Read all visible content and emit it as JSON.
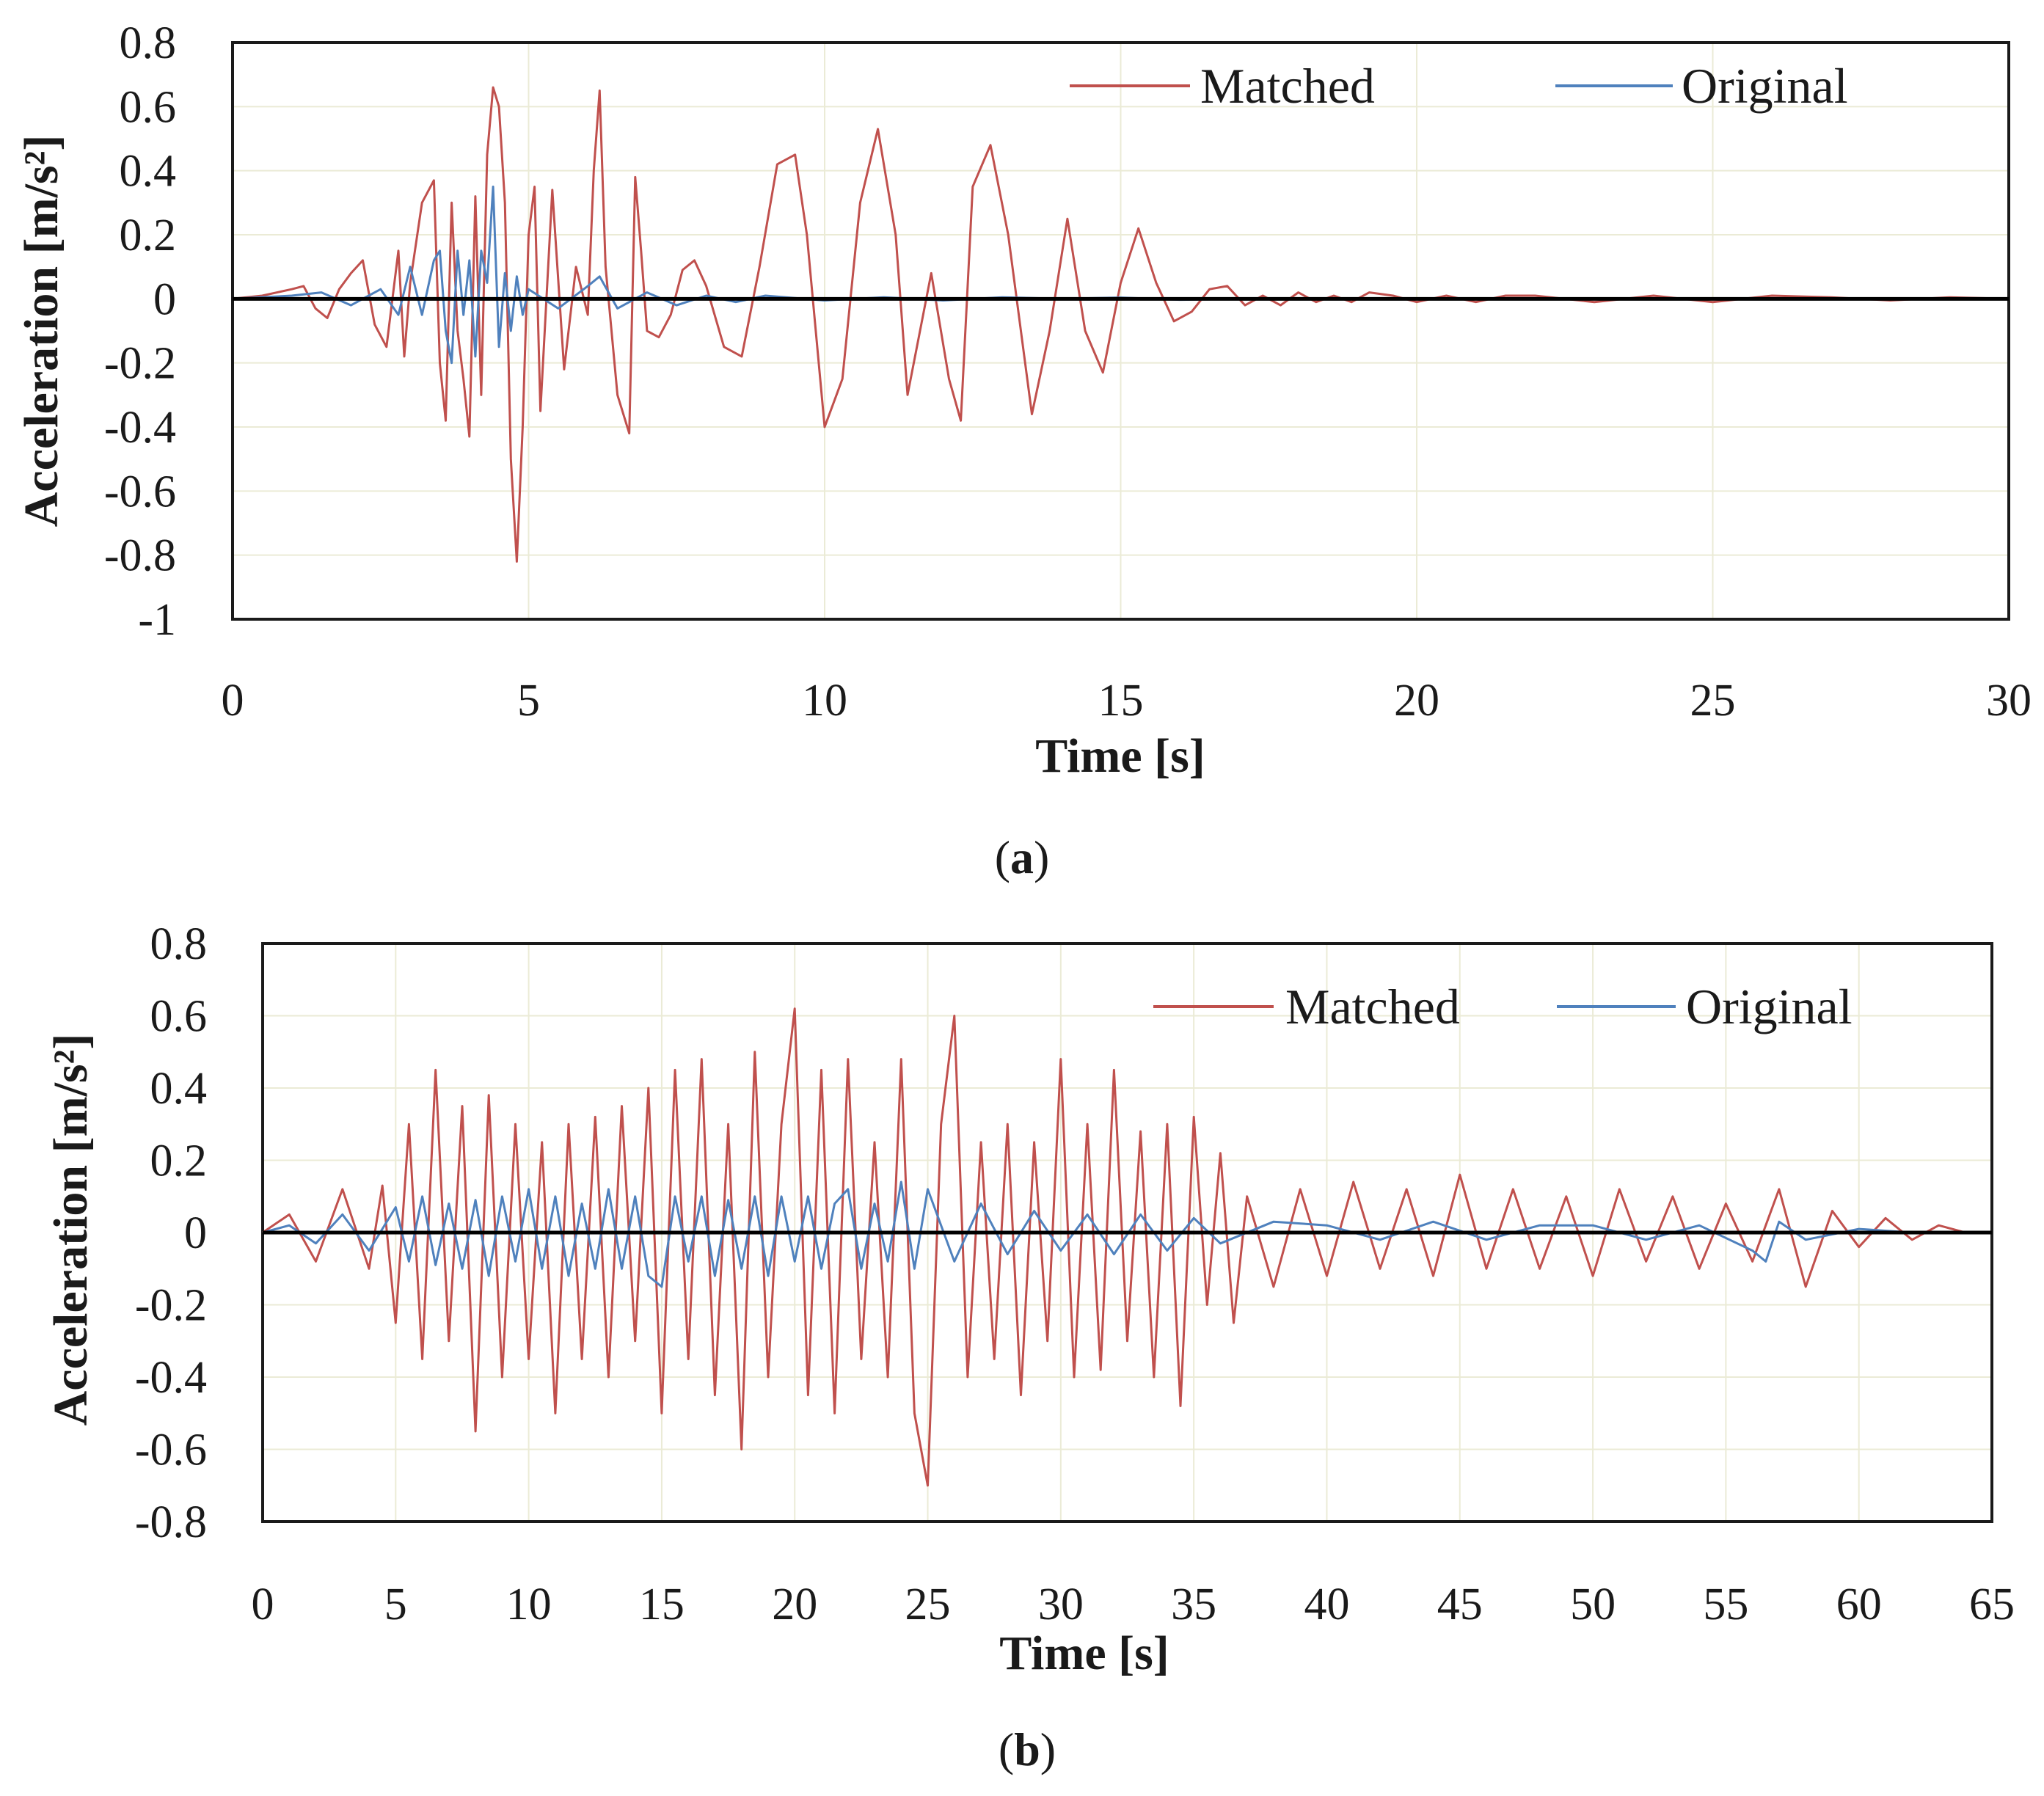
{
  "figure": {
    "panels": [
      {
        "caption_open": "(",
        "caption_letter": "a",
        "caption_close": ")"
      },
      {
        "caption_open": "(",
        "caption_letter": "b",
        "caption_close": ")"
      }
    ]
  },
  "colors": {
    "matched": "#c0504d",
    "original": "#4f81bd",
    "zero_line": "#000000",
    "grid": "#ebebd6",
    "frame": "#1a1a1a"
  },
  "chart_data": [
    {
      "type": "line",
      "panel": "a",
      "xlabel": "Time [s]",
      "ylabel": "Acceleration [m/s²]",
      "xlim": [
        0,
        30
      ],
      "ylim": [
        -1,
        0.8
      ],
      "xticks": [
        0,
        5,
        10,
        15,
        20,
        25,
        30
      ],
      "yticks": [
        -1,
        -0.8,
        -0.6,
        -0.4,
        -0.2,
        0,
        0.2,
        0.4,
        0.6,
        0.8
      ],
      "xtick_labels": [
        "0",
        "5",
        "10",
        "15",
        "20",
        "25",
        "30"
      ],
      "ytick_labels": [
        "-1",
        "-0.8",
        "-0.6",
        "-0.4",
        "-0.2",
        "0",
        "0.2",
        "0.4",
        "0.6",
        "0.8"
      ],
      "legend": [
        "Matched",
        "Original"
      ],
      "legend_position": "top-right",
      "series": [
        {
          "name": "Matched",
          "color": "#c0504d",
          "x": [
            0,
            0.5,
            1.0,
            1.2,
            1.4,
            1.6,
            1.8,
            2.0,
            2.2,
            2.4,
            2.6,
            2.8,
            2.9,
            3.0,
            3.2,
            3.4,
            3.5,
            3.6,
            3.7,
            3.8,
            3.9,
            4.0,
            4.1,
            4.2,
            4.3,
            4.4,
            4.5,
            4.6,
            4.7,
            4.8,
            4.9,
            5.0,
            5.1,
            5.2,
            5.4,
            5.6,
            5.8,
            6.0,
            6.1,
            6.2,
            6.3,
            6.5,
            6.7,
            6.8,
            6.9,
            7.0,
            7.2,
            7.4,
            7.6,
            7.8,
            8.0,
            8.3,
            8.6,
            8.9,
            9.2,
            9.5,
            9.7,
            10.0,
            10.3,
            10.6,
            10.9,
            11.2,
            11.4,
            11.8,
            12.1,
            12.3,
            12.5,
            12.8,
            13.1,
            13.5,
            13.8,
            14.1,
            14.4,
            14.7,
            15.0,
            15.3,
            15.6,
            15.9,
            16.2,
            16.5,
            16.8,
            17.1,
            17.4,
            17.7,
            18.0,
            18.3,
            18.6,
            18.9,
            19.2,
            19.6,
            20.0,
            20.5,
            21.0,
            21.5,
            22.0,
            23.0,
            24.0,
            25.0,
            26.0,
            27.0,
            28.0,
            29.0,
            30.0
          ],
          "y": [
            0,
            0.01,
            0.03,
            0.04,
            -0.03,
            -0.06,
            0.03,
            0.08,
            0.12,
            -0.08,
            -0.15,
            0.15,
            -0.18,
            0.05,
            0.3,
            0.37,
            -0.2,
            -0.38,
            0.3,
            -0.1,
            -0.25,
            -0.43,
            0.32,
            -0.3,
            0.45,
            0.66,
            0.6,
            0.3,
            -0.5,
            -0.82,
            -0.4,
            0.2,
            0.35,
            -0.35,
            0.34,
            -0.22,
            0.1,
            -0.05,
            0.4,
            0.65,
            0.1,
            -0.3,
            -0.42,
            0.38,
            0.15,
            -0.1,
            -0.12,
            -0.05,
            0.09,
            0.12,
            0.04,
            -0.15,
            -0.18,
            0.1,
            0.42,
            0.45,
            0.2,
            -0.4,
            -0.25,
            0.3,
            0.53,
            0.2,
            -0.3,
            0.08,
            -0.25,
            -0.38,
            0.35,
            0.48,
            0.2,
            -0.36,
            -0.1,
            0.25,
            -0.1,
            -0.23,
            0.05,
            0.22,
            0.05,
            -0.07,
            -0.04,
            0.03,
            0.04,
            -0.02,
            0.01,
            -0.02,
            0.02,
            -0.01,
            0.01,
            -0.01,
            0.02,
            0.01,
            -0.01,
            0.01,
            -0.01,
            0.01,
            0.01,
            -0.01,
            0.01,
            -0.01,
            0.01,
            0.005,
            -0.005,
            0.005,
            0
          ]
        },
        {
          "name": "Original",
          "color": "#4f81bd",
          "x": [
            0,
            1.0,
            1.5,
            2.0,
            2.5,
            2.8,
            3.0,
            3.2,
            3.4,
            3.5,
            3.6,
            3.7,
            3.8,
            3.9,
            4.0,
            4.1,
            4.2,
            4.3,
            4.4,
            4.5,
            4.6,
            4.7,
            4.8,
            4.9,
            5.0,
            5.5,
            6.0,
            6.2,
            6.5,
            7.0,
            7.5,
            8.0,
            8.5,
            9.0,
            10.0,
            11.0,
            12.0,
            13.0,
            14.0,
            15.0,
            16.0,
            18.0,
            20.0,
            25.0,
            30.0
          ],
          "y": [
            0,
            0.01,
            0.02,
            -0.02,
            0.03,
            -0.05,
            0.1,
            -0.05,
            0.12,
            0.15,
            -0.1,
            -0.2,
            0.15,
            -0.05,
            0.12,
            -0.18,
            0.15,
            0.05,
            0.35,
            -0.15,
            0.08,
            -0.1,
            0.07,
            -0.05,
            0.03,
            -0.03,
            0.04,
            0.07,
            -0.03,
            0.02,
            -0.02,
            0.01,
            -0.01,
            0.01,
            -0.005,
            0.005,
            -0.005,
            0.005,
            0,
            0.004,
            -0.003,
            0.002,
            0,
            0,
            0
          ]
        }
      ]
    },
    {
      "type": "line",
      "panel": "b",
      "xlabel": "Time [s]",
      "ylabel": "Acceleration [m/s²]",
      "xlim": [
        0,
        65
      ],
      "ylim": [
        -0.8,
        0.8
      ],
      "xticks": [
        0,
        5,
        10,
        15,
        20,
        25,
        30,
        35,
        40,
        45,
        50,
        55,
        60,
        65
      ],
      "yticks": [
        -0.8,
        -0.6,
        -0.4,
        -0.2,
        0,
        0.2,
        0.4,
        0.6,
        0.8
      ],
      "xtick_labels": [
        "0",
        "5",
        "10",
        "15",
        "20",
        "25",
        "30",
        "35",
        "40",
        "45",
        "50",
        "55",
        "60",
        "65"
      ],
      "ytick_labels": [
        "-0.8",
        "-0.6",
        "-0.4",
        "-0.2",
        "0",
        "0.2",
        "0.4",
        "0.6",
        "0.8"
      ],
      "legend": [
        "Matched",
        "Original"
      ],
      "legend_position": "top-right",
      "series": [
        {
          "name": "Matched",
          "color": "#c0504d",
          "x": [
            0,
            1,
            2,
            3,
            4,
            4.5,
            5,
            5.5,
            6,
            6.5,
            7,
            7.5,
            8,
            8.5,
            9,
            9.5,
            10,
            10.5,
            11,
            11.5,
            12,
            12.5,
            13,
            13.5,
            14,
            14.5,
            15,
            15.5,
            16,
            16.5,
            17,
            17.5,
            18,
            18.5,
            19,
            19.5,
            20,
            20.5,
            21,
            21.5,
            22,
            22.5,
            23,
            23.5,
            24,
            24.5,
            25,
            25.5,
            26,
            26.5,
            27,
            27.5,
            28,
            28.5,
            29,
            29.5,
            30,
            30.5,
            31,
            31.5,
            32,
            32.5,
            33,
            33.5,
            34,
            34.5,
            35,
            35.5,
            36,
            36.5,
            37,
            38,
            39,
            40,
            41,
            42,
            43,
            44,
            45,
            46,
            47,
            48,
            49,
            50,
            51,
            52,
            53,
            54,
            55,
            56,
            57,
            58,
            59,
            60,
            61,
            62,
            63,
            64,
            65
          ],
          "y": [
            0,
            0.05,
            -0.08,
            0.12,
            -0.1,
            0.13,
            -0.25,
            0.3,
            -0.35,
            0.45,
            -0.3,
            0.35,
            -0.55,
            0.38,
            -0.4,
            0.3,
            -0.35,
            0.25,
            -0.5,
            0.3,
            -0.35,
            0.32,
            -0.4,
            0.35,
            -0.3,
            0.4,
            -0.5,
            0.45,
            -0.35,
            0.48,
            -0.45,
            0.3,
            -0.6,
            0.5,
            -0.4,
            0.3,
            0.62,
            -0.45,
            0.45,
            -0.5,
            0.48,
            -0.35,
            0.25,
            -0.4,
            0.48,
            -0.5,
            -0.7,
            0.3,
            0.6,
            -0.4,
            0.25,
            -0.35,
            0.3,
            -0.45,
            0.25,
            -0.3,
            0.48,
            -0.4,
            0.3,
            -0.38,
            0.45,
            -0.3,
            0.28,
            -0.4,
            0.3,
            -0.48,
            0.32,
            -0.2,
            0.22,
            -0.25,
            0.1,
            -0.15,
            0.12,
            -0.12,
            0.14,
            -0.1,
            0.12,
            -0.12,
            0.16,
            -0.1,
            0.12,
            -0.1,
            0.1,
            -0.12,
            0.12,
            -0.08,
            0.1,
            -0.1,
            0.08,
            -0.08,
            0.12,
            -0.15,
            0.06,
            -0.04,
            0.04,
            -0.02,
            0.02,
            0,
            0
          ]
        },
        {
          "name": "Original",
          "color": "#4f81bd",
          "x": [
            0,
            1,
            2,
            3,
            4,
            5,
            5.5,
            6,
            6.5,
            7,
            7.5,
            8,
            8.5,
            9,
            9.5,
            10,
            10.5,
            11,
            11.5,
            12,
            12.5,
            13,
            13.5,
            14,
            14.5,
            15,
            15.5,
            16,
            16.5,
            17,
            17.5,
            18,
            18.5,
            19,
            19.5,
            20,
            20.5,
            21,
            21.5,
            22,
            22.5,
            23,
            23.5,
            24,
            24.5,
            25,
            26,
            27,
            28,
            29,
            30,
            31,
            32,
            33,
            34,
            35,
            36,
            38,
            40,
            42,
            44,
            46,
            48,
            50,
            52,
            54,
            56,
            56.5,
            57,
            58,
            60,
            62,
            65
          ],
          "y": [
            0,
            0.02,
            -0.03,
            0.05,
            -0.05,
            0.07,
            -0.08,
            0.1,
            -0.09,
            0.08,
            -0.1,
            0.09,
            -0.12,
            0.1,
            -0.08,
            0.12,
            -0.1,
            0.1,
            -0.12,
            0.08,
            -0.1,
            0.12,
            -0.1,
            0.1,
            -0.12,
            -0.15,
            0.1,
            -0.08,
            0.1,
            -0.12,
            0.09,
            -0.1,
            0.1,
            -0.12,
            0.1,
            -0.08,
            0.1,
            -0.1,
            0.08,
            0.12,
            -0.1,
            0.08,
            -0.08,
            0.14,
            -0.1,
            0.12,
            -0.08,
            0.08,
            -0.06,
            0.06,
            -0.05,
            0.05,
            -0.06,
            0.05,
            -0.05,
            0.04,
            -0.03,
            0.03,
            0.02,
            -0.02,
            0.03,
            -0.02,
            0.02,
            0.02,
            -0.02,
            0.02,
            -0.05,
            -0.08,
            0.03,
            -0.02,
            0.01,
            0,
            0
          ]
        }
      ]
    }
  ]
}
